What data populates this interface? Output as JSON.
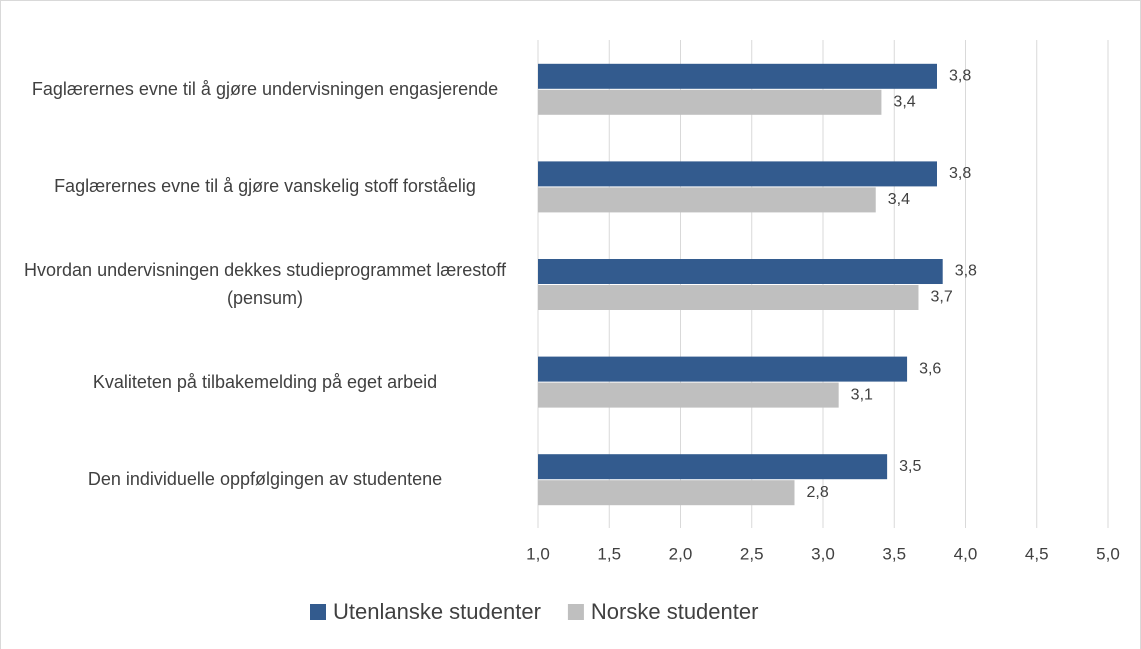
{
  "chart_data": {
    "type": "hbar",
    "categories": [
      "Faglærernes evne til å gjøre undervisningen engasjerende",
      "Faglærernes evne til å gjøre vanskelig stoff forståelig",
      "Hvordan undervisningen dekkes studieprogrammet lærestoff (pensum)",
      "Kvaliteten på tilbakemelding på eget arbeid",
      "Den individuelle oppfølgingen av studentene"
    ],
    "series": [
      {
        "name": "Utenlanske studenter",
        "color": "#335b8e",
        "values": [
          3.8,
          3.8,
          3.84,
          3.59,
          3.45
        ],
        "value_labels": [
          "3,8",
          "3,8",
          "3,8",
          "3,6",
          "3,5"
        ]
      },
      {
        "name": "Norske studenter",
        "color": "#bfbfbf",
        "values": [
          3.41,
          3.37,
          3.67,
          3.11,
          2.8
        ],
        "value_labels": [
          "3,4",
          "3,4",
          "3,7",
          "3,1",
          "2,8"
        ]
      }
    ],
    "xlim": [
      1,
      5
    ],
    "xticks": [
      {
        "value": 1,
        "label": "1,0"
      },
      {
        "value": 1.5,
        "label": "1,5"
      },
      {
        "value": 2,
        "label": "2,0"
      },
      {
        "value": 2.5,
        "label": "2,5"
      },
      {
        "value": 3,
        "label": "3,0"
      },
      {
        "value": 3.5,
        "label": "3,5"
      },
      {
        "value": 4,
        "label": "4,0"
      },
      {
        "value": 4.5,
        "label": "4,5"
      },
      {
        "value": 5,
        "label": "5,0"
      }
    ],
    "grid": true,
    "legend": "bottom"
  }
}
